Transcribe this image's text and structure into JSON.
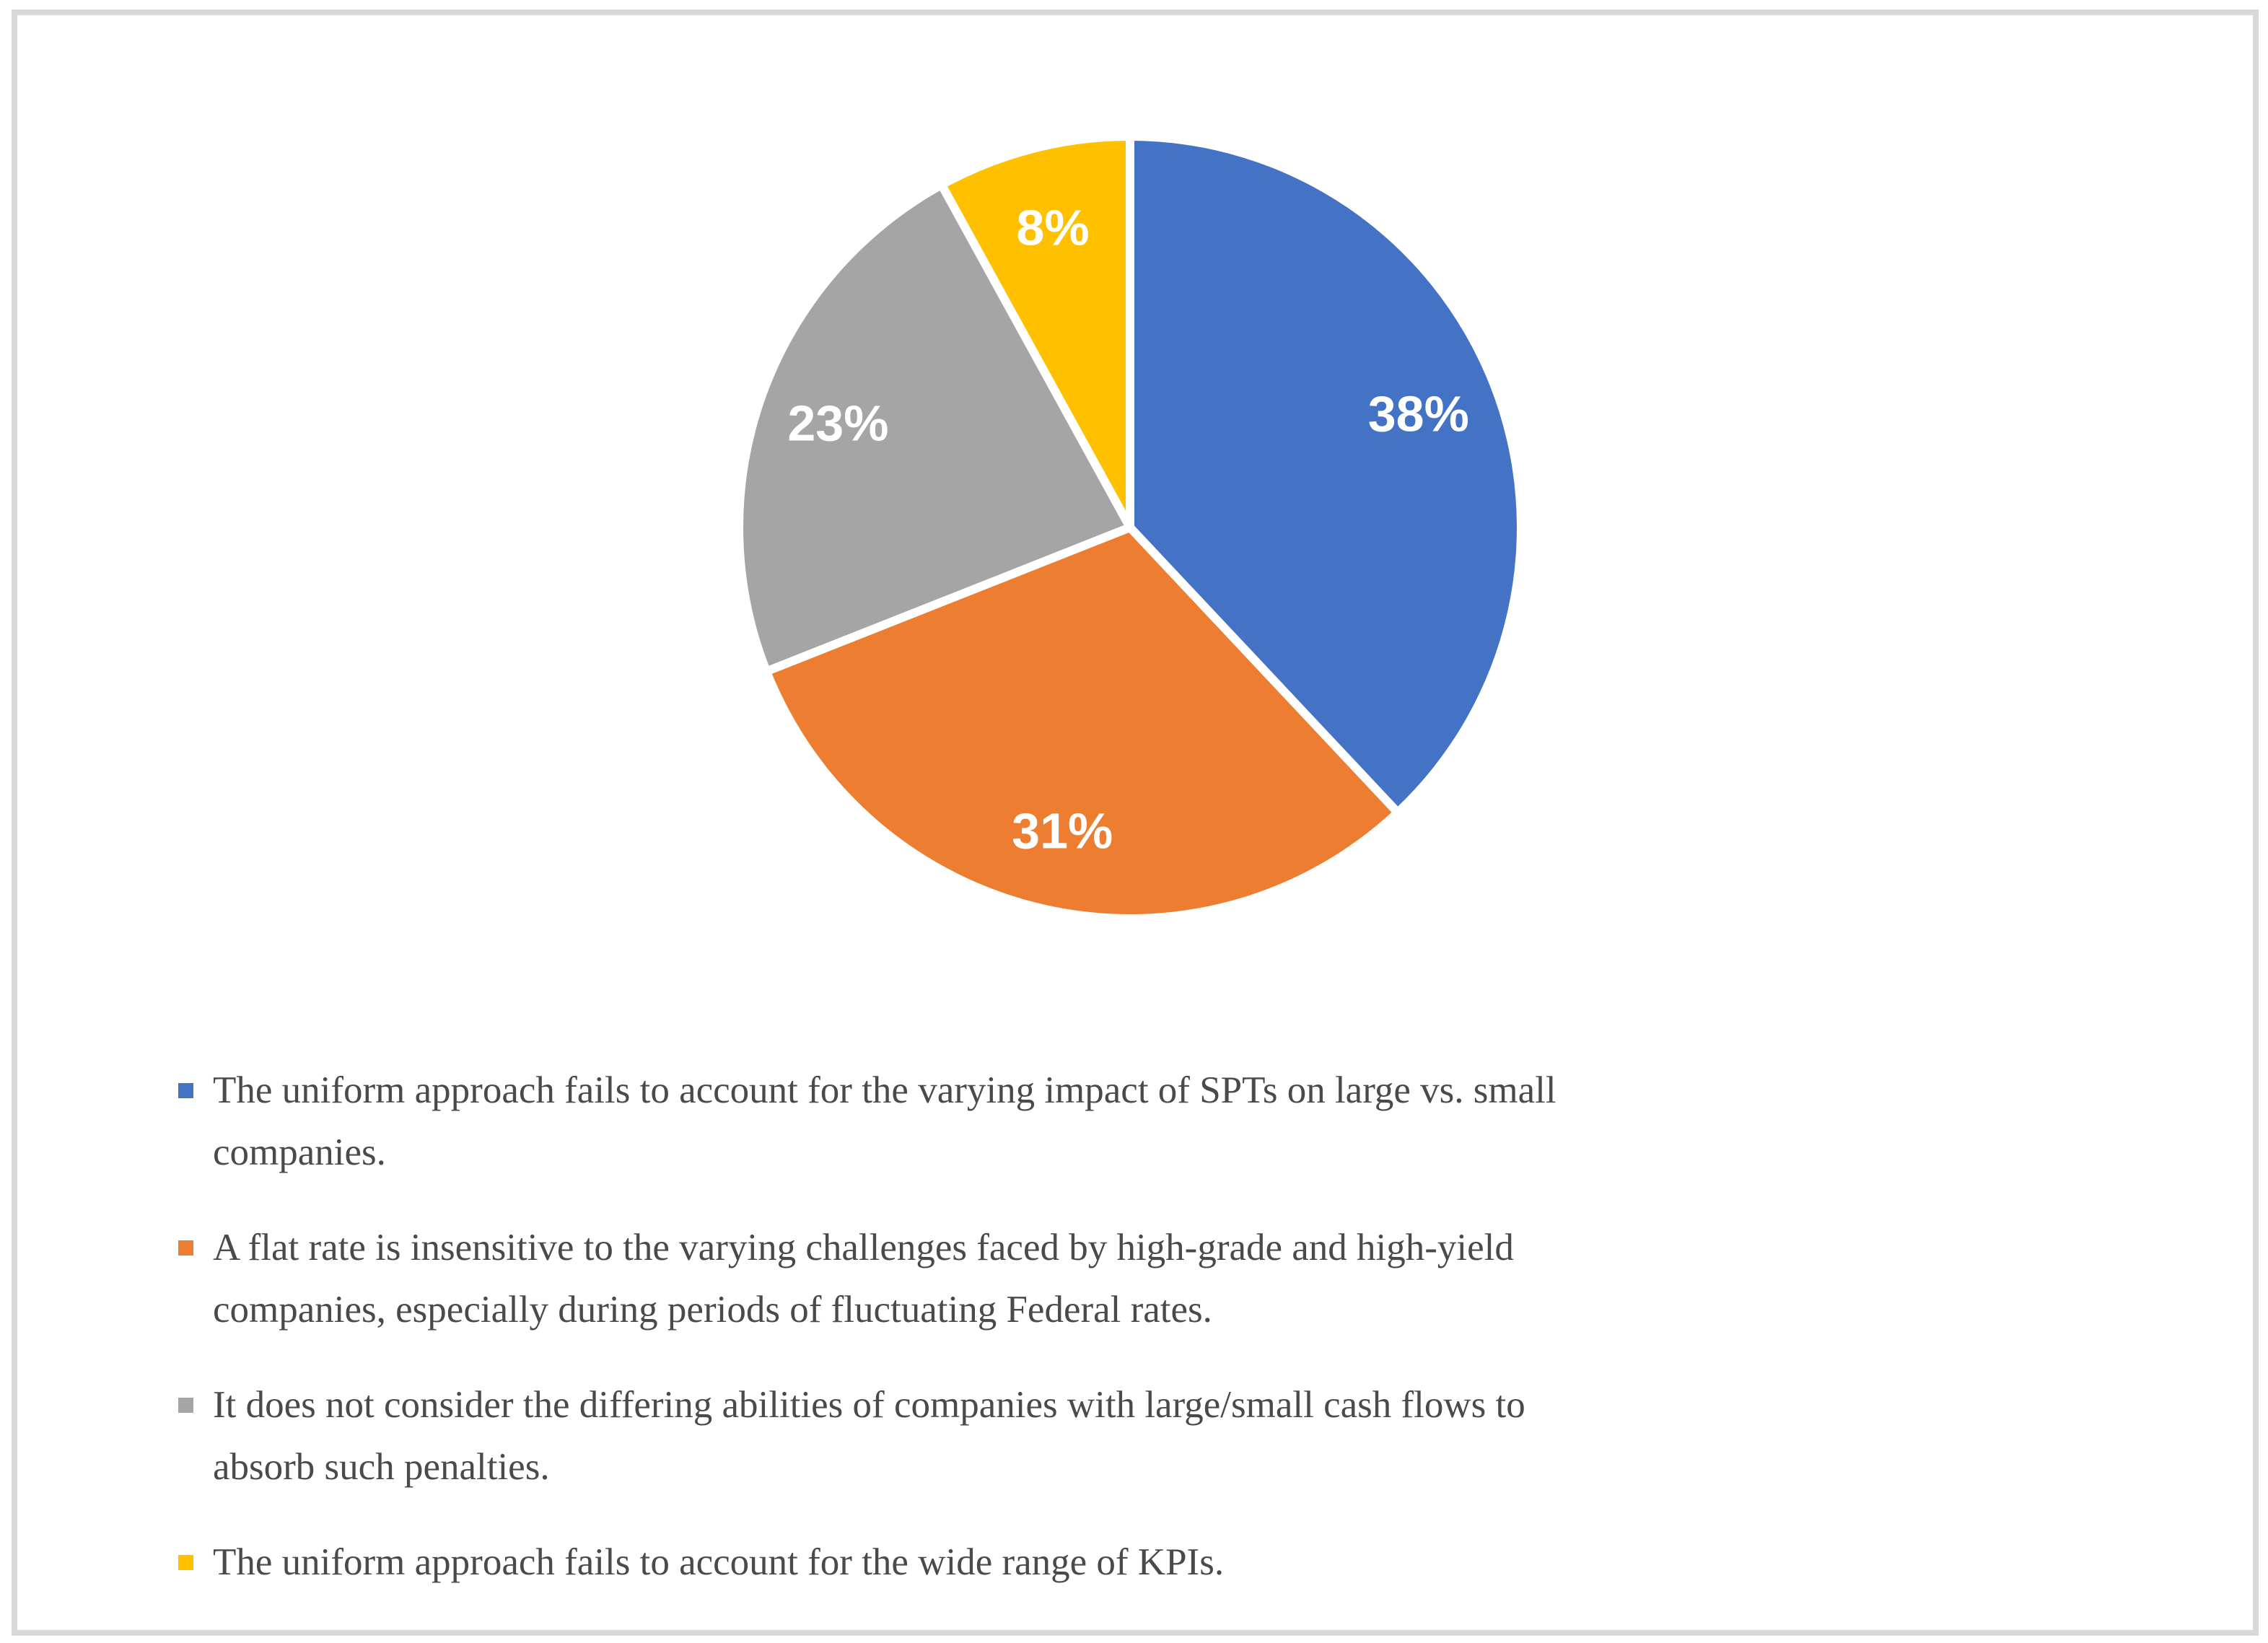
{
  "page": {
    "background_color": "#FFFFFF",
    "frame_border_color": "#D9D9D9"
  },
  "chart_data": {
    "type": "pie",
    "title": "",
    "start_angle_deg": 0,
    "direction": "clockwise",
    "legend_position": "bottom",
    "slice_label_color": "#FFFFFF",
    "separator_color": "#FFFFFF",
    "categories": [
      "The uniform approach fails to account for the varying impact of SPTs on large vs. small companies.",
      "A flat rate is insensitive to the varying challenges faced by high-grade and high-yield companies, especially during periods of fluctuating Federal rates.",
      "It does not consider the differing abilities of companies with large/small cash flows to absorb such penalties.",
      "The uniform approach fails to account for the wide range of KPIs."
    ],
    "values": [
      38,
      31,
      23,
      8
    ],
    "labels": [
      "38%",
      "31%",
      "23%",
      "8%"
    ],
    "colors": [
      "#4472C4",
      "#ED7D31",
      "#A5A5A5",
      "#FFC000"
    ]
  },
  "legend": {
    "items": [
      {
        "color": "#4472C4",
        "lines": [
          "The uniform approach fails to account for the varying impact of SPTs on large vs. small",
          "companies."
        ]
      },
      {
        "color": "#ED7D31",
        "lines": [
          "A flat rate is insensitive to the varying challenges faced by high-grade and high-yield",
          "companies, especially during periods of fluctuating Federal rates."
        ]
      },
      {
        "color": "#A5A5A5",
        "lines": [
          "It does not consider the differing abilities of companies with large/small cash flows to",
          "absorb such penalties."
        ]
      },
      {
        "color": "#FFC000",
        "lines": [
          "The uniform approach fails to account for the wide range of KPIs."
        ]
      }
    ]
  }
}
